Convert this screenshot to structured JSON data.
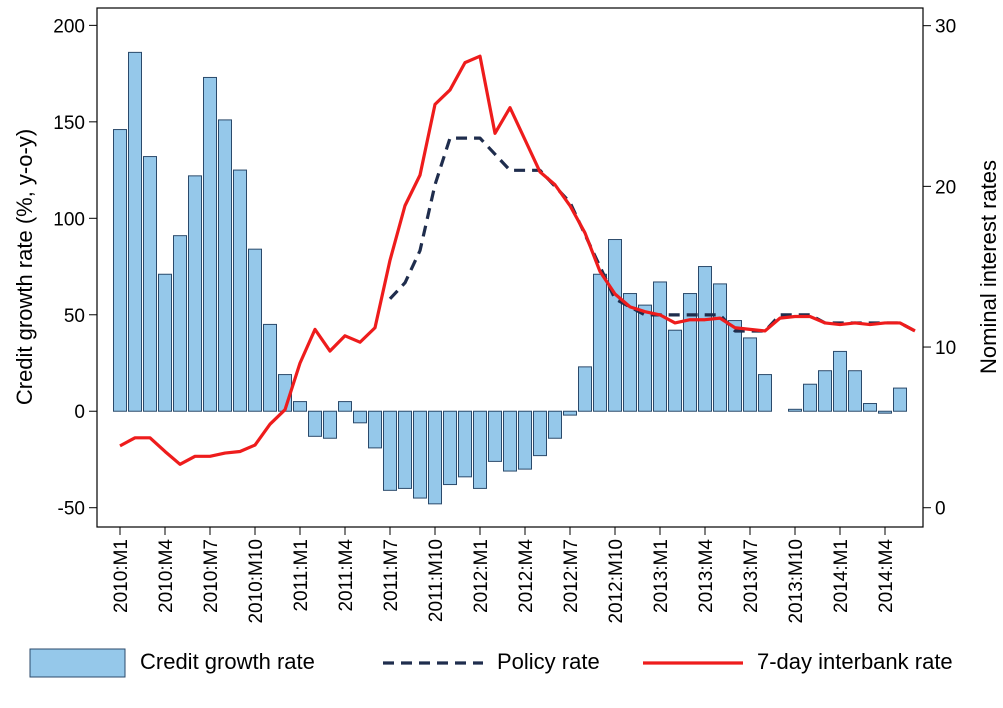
{
  "chart_data": {
    "type": "bar",
    "y_label": "Credit growth rate (%, y-o-y)",
    "y2_label": "Nominal interest rates",
    "categories": [
      "2010:M1",
      null,
      null,
      "2010:M4",
      null,
      null,
      "2010:M7",
      null,
      null,
      "2010:M10",
      null,
      null,
      "2011:M1",
      null,
      null,
      "2011:M4",
      null,
      null,
      "2011:M7",
      null,
      null,
      "2011:M10",
      null,
      null,
      "2012:M1",
      null,
      null,
      "2012:M4",
      null,
      null,
      "2012:M7",
      null,
      null,
      "2012:M10",
      null,
      null,
      "2013:M1",
      null,
      null,
      "2013:M4",
      null,
      null,
      "2013:M7",
      null,
      null,
      "2013:M10",
      null,
      null,
      "2014:M1",
      null,
      null,
      "2014:M4",
      null,
      null
    ],
    "ylim": [
      -60,
      209
    ],
    "yticks": [
      -50,
      0,
      50,
      100,
      150,
      200
    ],
    "y2lim": [
      -1.2,
      31.1
    ],
    "y2ticks": [
      0,
      10,
      20,
      30
    ],
    "series": [
      {
        "name": "Credit growth rate",
        "type": "bar",
        "color": "#95c8ea",
        "edge": "#2b4a6b",
        "values": [
          146,
          186,
          132,
          71,
          91,
          122,
          173,
          151,
          125,
          84,
          45,
          19,
          5,
          -13,
          -14,
          5,
          -6,
          -19,
          -41,
          -40,
          -45,
          -48,
          -38,
          -34,
          -40,
          -26,
          -31,
          -30,
          -23,
          -14,
          -2,
          23,
          71,
          89,
          61,
          55,
          67,
          42,
          61,
          75,
          66,
          47,
          38,
          19,
          0,
          1,
          14,
          21,
          31,
          21,
          4,
          -1,
          12,
          null
        ]
      },
      {
        "name": "Policy rate",
        "type": "line",
        "axis": "y2",
        "color": "#1f2d4d",
        "dashed": true,
        "values": [
          null,
          null,
          null,
          null,
          null,
          null,
          null,
          null,
          null,
          null,
          null,
          null,
          null,
          null,
          null,
          null,
          null,
          null,
          13,
          14,
          16,
          20.1,
          23,
          23,
          23,
          22,
          21,
          21,
          21,
          20,
          19,
          17,
          15,
          13,
          12.5,
          12,
          12,
          12,
          12,
          12,
          12,
          11,
          11,
          11,
          12,
          12,
          12,
          11.5,
          11.5,
          11.5,
          11.5,
          11.5,
          11.5,
          11
        ]
      },
      {
        "name": "7-day interbank rate",
        "type": "line",
        "axis": "y2",
        "color": "#ee1c1c",
        "dashed": false,
        "values": [
          3.85,
          4.35,
          4.35,
          3.5,
          2.7,
          3.2,
          3.2,
          3.4,
          3.5,
          3.9,
          5.2,
          6.1,
          9,
          11.1,
          9.75,
          10.7,
          10.3,
          11.2,
          15.4,
          18.8,
          20.7,
          25.1,
          26,
          27.7,
          28.1,
          23.3,
          24.9,
          22.9,
          20.9,
          20.1,
          18.8,
          17.1,
          14.7,
          13.3,
          12.5,
          12.2,
          12,
          11.5,
          11.7,
          11.7,
          11.8,
          11.2,
          11.1,
          11,
          11.8,
          11.9,
          11.9,
          11.5,
          11.4,
          11.5,
          11.4,
          11.5,
          11.5,
          11
        ]
      }
    ]
  }
}
